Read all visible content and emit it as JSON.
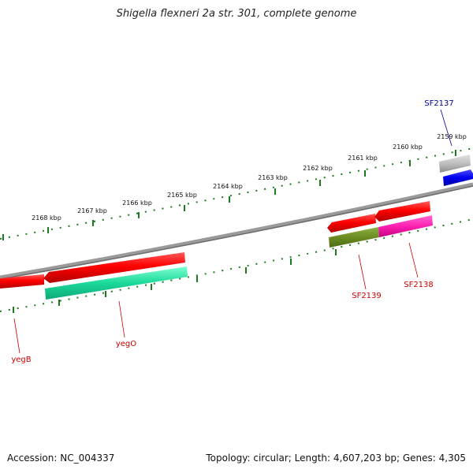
{
  "title": "Shigella flexneri 2a str. 301, complete genome",
  "footer": {
    "accession": "Accession: NC_004337",
    "summary": "Topology: circular; Length: 4,607,203 bp; Genes: 4,305"
  },
  "colors": {
    "backbone": "#7a7a7a",
    "tick": "#1e7a1e",
    "forward_gene": "#ff0000",
    "label_red": "#cc0000",
    "label_blue": "#000099"
  },
  "ruler": {
    "unit": "kbp",
    "ticks": [
      "2159 kbp",
      "2160 kbp",
      "2161 kbp",
      "2162 kbp",
      "2163 kbp",
      "2164 kbp",
      "2165 kbp",
      "2166 kbp",
      "2167 kbp",
      "2168 kbp"
    ]
  },
  "genes": [
    {
      "name": "SF2137",
      "label_color": "#000099"
    },
    {
      "name": "SF2138",
      "label_color": "#cc0000"
    },
    {
      "name": "SF2139",
      "label_color": "#cc0000"
    },
    {
      "name": "yegO",
      "label_color": "#cc0000"
    },
    {
      "name": "yegB",
      "label_color": "#cc0000"
    }
  ]
}
